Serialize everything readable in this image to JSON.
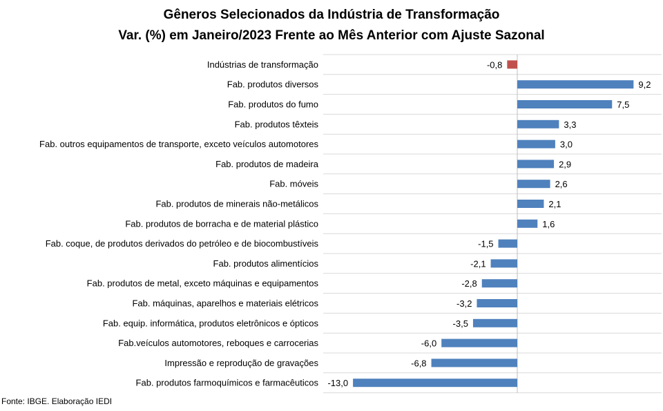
{
  "chart_data": {
    "type": "bar",
    "orientation": "horizontal",
    "title": "Gêneros Selecionados da Indústria de Transformação",
    "subtitle": "Var. (%) em Janeiro/2023 Frente ao Mês Anterior com Ajuste Sazonal",
    "categories": [
      "Indústrias de transformação",
      "Fab. produtos diversos",
      "Fab. produtos do fumo",
      "Fab. produtos têxteis",
      "Fab. outros equipamentos de transporte, exceto veículos automotores",
      "Fab. produtos de madeira",
      "Fab. móveis",
      "Fab. produtos de minerais não-metálicos",
      "Fab. produtos de borracha e de material plástico",
      "Fab. coque, de produtos derivados do petróleo e de biocombustíveis",
      "Fab. produtos alimentícios",
      "Fab. produtos de metal, exceto máquinas e equipamentos",
      "Fab. máquinas, aparelhos e materiais elétricos",
      "Fab. equip. informática, produtos eletrônicos e ópticos",
      "Fab.veículos automotores, reboques e carrocerias",
      "Impressão e reprodução de gravações",
      "Fab. produtos farmoquímicos e farmacêuticos"
    ],
    "values": [
      -0.8,
      9.2,
      7.5,
      3.3,
      3.0,
      2.9,
      2.6,
      2.1,
      1.6,
      -1.5,
      -2.1,
      -2.8,
      -3.2,
      -3.5,
      -6.0,
      -6.8,
      -13.0
    ],
    "value_labels": [
      "-0,8",
      "9,2",
      "7,5",
      "3,3",
      "3,0",
      "2,9",
      "2,6",
      "2,1",
      "1,6",
      "-1,5",
      "-2,1",
      "-2,8",
      "-3,2",
      "-3,5",
      "-6,0",
      "-6,8",
      "-13,0"
    ],
    "xlim": [
      -13.0,
      9.2
    ],
    "grid": true,
    "highlight_index": 0,
    "colors": {
      "bar": "#4f81bd",
      "highlight": "#c0504d",
      "grid": "#d9d9d9",
      "axis": "#bfbfbf"
    }
  },
  "source": "Fonte: IBGE. Elaboração IEDI"
}
